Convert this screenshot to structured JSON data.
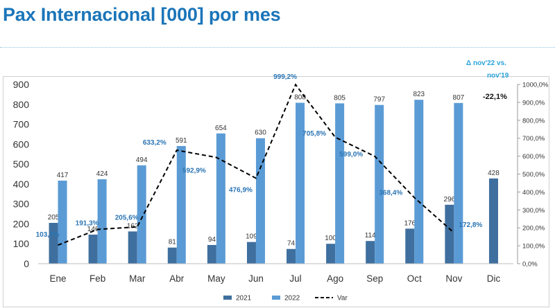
{
  "page": {
    "title": "Pax Internacional [000] por mes",
    "note": {
      "line1": "Δ nov'22 vs.",
      "line2": "nov'19",
      "value": "-22,1%"
    }
  },
  "chart_data": {
    "type": "bar",
    "title": "Pax Internacional [000] por mes",
    "categories": [
      "Ene",
      "Feb",
      "Mar",
      "Abr",
      "May",
      "Jun",
      "Jul",
      "Ago",
      "Sep",
      "Oct",
      "Nov",
      "Dic"
    ],
    "series": [
      {
        "name": "2021",
        "type": "bar",
        "axis": "left",
        "color": "#3e6f9e",
        "values": [
          205,
          146,
          162,
          81,
          94,
          109,
          74,
          100,
          114,
          176,
          296,
          428
        ]
      },
      {
        "name": "2022",
        "type": "bar",
        "axis": "left",
        "color": "#5b9bd5",
        "values": [
          417,
          424,
          494,
          591,
          654,
          630,
          808,
          805,
          797,
          823,
          807,
          null
        ]
      },
      {
        "name": "Var",
        "type": "line",
        "axis": "right",
        "style": "dashed",
        "color": "#000000",
        "values": [
          103.7,
          191.3,
          205.6,
          633.2,
          592.9,
          476.9,
          999.2,
          705.8,
          599.0,
          368.4,
          172.8,
          null
        ],
        "labels": [
          "103,7%",
          "191,3%",
          "205,6%",
          "633,2%",
          "592,9%",
          "476,9%",
          "999,2%",
          "705,8%",
          "599,0%",
          "368,4%",
          "172,8%",
          ""
        ],
        "label_color": "#2a74b4"
      }
    ],
    "y_left": {
      "min": 0,
      "max": 900,
      "ticks": [
        "0",
        "100",
        "200",
        "300",
        "400",
        "500",
        "600",
        "700",
        "800",
        "900"
      ]
    },
    "y_right": {
      "min": 0,
      "max": 1000,
      "ticks": [
        "0,0%",
        "100,0%",
        "200,0%",
        "300,0%",
        "400,0%",
        "500,0%",
        "600,0%",
        "700,0%",
        "800,0%",
        "900,0%",
        "1000,0%"
      ]
    },
    "grid": false,
    "legend": {
      "position": "bottom",
      "entries": [
        "2021",
        "2022",
        "Var"
      ]
    }
  }
}
